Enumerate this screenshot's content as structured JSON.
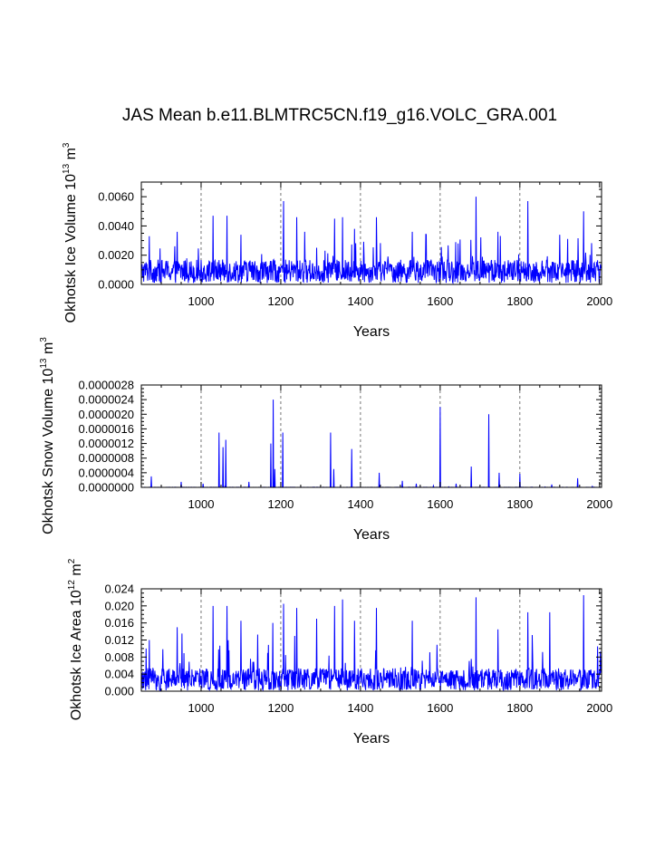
{
  "title": "JAS Mean b.e11.BLMTRC5CN.f19_g16.VOLC_GRA.001",
  "colors": {
    "series": "#0000ff",
    "axis": "#000000",
    "refline": "#555555"
  },
  "chart_data": [
    {
      "type": "line",
      "panel": "ice-volume",
      "ylabel_main": "Okhotsk Ice Volume 10",
      "ylabel_exp": "13",
      "ylabel_unit": " m",
      "ylabel_unit_exp": "3",
      "xlabel": "Years",
      "xlim": [
        850,
        2005
      ],
      "ylim": [
        0,
        0.007
      ],
      "xticks": [
        1000,
        1200,
        1400,
        1600,
        1800,
        2000
      ],
      "xtick_labels": [
        "1000",
        "1200",
        "1400",
        "1600",
        "1800",
        "2000"
      ],
      "yticks": [
        0,
        0.002,
        0.004,
        0.006
      ],
      "ytick_labels": [
        "0.0000",
        "0.0020",
        "0.0040",
        "0.0060"
      ],
      "ref_lines_x": [
        1000,
        1200,
        1400,
        1600,
        1800
      ],
      "series": {
        "name": "Okhotsk Ice Volume",
        "baseline": 0.0009,
        "noise": 0.0008,
        "spike_rate": 0.05,
        "spike_max": 0.0022,
        "peaks": [
          [
            1030,
            0.0047
          ],
          [
            1065,
            0.0047
          ],
          [
            1207,
            0.0057
          ],
          [
            1240,
            0.0046
          ],
          [
            1335,
            0.0045
          ],
          [
            1355,
            0.0046
          ],
          [
            1440,
            0.0046
          ],
          [
            1690,
            0.006
          ],
          [
            1820,
            0.0057
          ],
          [
            1960,
            0.005
          ],
          [
            870,
            0.0033
          ],
          [
            940,
            0.0036
          ],
          [
            1100,
            0.0034
          ],
          [
            1260,
            0.0036
          ],
          [
            1385,
            0.0038
          ],
          [
            1530,
            0.0036
          ],
          [
            1745,
            0.0036
          ],
          [
            1900,
            0.0034
          ]
        ]
      }
    },
    {
      "type": "line",
      "panel": "snow-volume",
      "ylabel_main": "Okhotsk Snow Volume 10",
      "ylabel_exp": "13",
      "ylabel_unit": " m",
      "ylabel_unit_exp": "3",
      "xlabel": "Years",
      "xlim": [
        850,
        2005
      ],
      "ylim": [
        0,
        2.8e-06
      ],
      "xticks": [
        1000,
        1200,
        1400,
        1600,
        1800,
        2000
      ],
      "xtick_labels": [
        "1000",
        "1200",
        "1400",
        "1600",
        "1800",
        "2000"
      ],
      "yticks": [
        0,
        4e-07,
        8e-07,
        1.2e-06,
        1.6e-06,
        2e-06,
        2.4e-06,
        2.8e-06
      ],
      "ytick_labels": [
        "0.0000000",
        "0.0000004",
        "0.0000008",
        "0.0000012",
        "0.0000016",
        "0.0000020",
        "0.0000024",
        "0.0000028"
      ],
      "ref_lines_x": [
        1000,
        1200,
        1400,
        1600,
        1800
      ],
      "series": {
        "name": "Okhotsk Snow Volume",
        "baseline": 0,
        "noise": 5e-09,
        "spike_rate": 0.01,
        "spike_max": 6e-08,
        "peaks": [
          [
            875,
            3e-07
          ],
          [
            950,
            1.5e-07
          ],
          [
            1005,
            1e-07
          ],
          [
            1045,
            1.5e-06
          ],
          [
            1055,
            1.1e-06
          ],
          [
            1062,
            1.3e-06
          ],
          [
            1120,
            1.5e-07
          ],
          [
            1175,
            1.2e-06
          ],
          [
            1181,
            2.4e-06
          ],
          [
            1185,
            5e-07
          ],
          [
            1205,
            1.5e-06
          ],
          [
            1325,
            1.5e-06
          ],
          [
            1333,
            5e-07
          ],
          [
            1378,
            1.05e-06
          ],
          [
            1447,
            4e-07
          ],
          [
            1505,
            1.8e-07
          ],
          [
            1540,
            1e-07
          ],
          [
            1600,
            2.2e-06
          ],
          [
            1640,
            1e-07
          ],
          [
            1678,
            5.7e-07
          ],
          [
            1722,
            2e-06
          ],
          [
            1748,
            4e-07
          ],
          [
            1800,
            3.7e-07
          ],
          [
            1880,
            8e-08
          ],
          [
            1945,
            2.5e-07
          ]
        ]
      }
    },
    {
      "type": "line",
      "panel": "ice-area",
      "ylabel_main": "Okhotsk Ice Area 10",
      "ylabel_exp": "12",
      "ylabel_unit": " m",
      "ylabel_unit_exp": "2",
      "xlabel": "Years",
      "xlim": [
        850,
        2005
      ],
      "ylim": [
        0,
        0.024
      ],
      "xticks": [
        1000,
        1200,
        1400,
        1600,
        1800,
        2000
      ],
      "xtick_labels": [
        "1000",
        "1200",
        "1400",
        "1600",
        "1800",
        "2000"
      ],
      "yticks": [
        0,
        0.004,
        0.008,
        0.012,
        0.016,
        0.02,
        0.024
      ],
      "ytick_labels": [
        "0.000",
        "0.004",
        "0.008",
        "0.012",
        "0.016",
        "0.020",
        "0.024"
      ],
      "ref_lines_x": [
        1000,
        1200,
        1400,
        1600,
        1800
      ],
      "series": {
        "name": "Okhotsk Ice Area",
        "baseline": 0.0028,
        "noise": 0.0026,
        "spike_rate": 0.05,
        "spike_max": 0.009,
        "peaks": [
          [
            1030,
            0.02
          ],
          [
            1065,
            0.02
          ],
          [
            1207,
            0.0205
          ],
          [
            1240,
            0.0195
          ],
          [
            1335,
            0.02
          ],
          [
            1355,
            0.0215
          ],
          [
            1440,
            0.0195
          ],
          [
            1690,
            0.022
          ],
          [
            1820,
            0.0185
          ],
          [
            1875,
            0.0185
          ],
          [
            1960,
            0.0225
          ],
          [
            870,
            0.012
          ],
          [
            940,
            0.015
          ],
          [
            1100,
            0.0165
          ],
          [
            1180,
            0.016
          ],
          [
            1290,
            0.017
          ],
          [
            1385,
            0.0165
          ],
          [
            1530,
            0.0165
          ],
          [
            1745,
            0.0145
          ],
          [
            1995,
            0.0105
          ]
        ]
      }
    }
  ]
}
